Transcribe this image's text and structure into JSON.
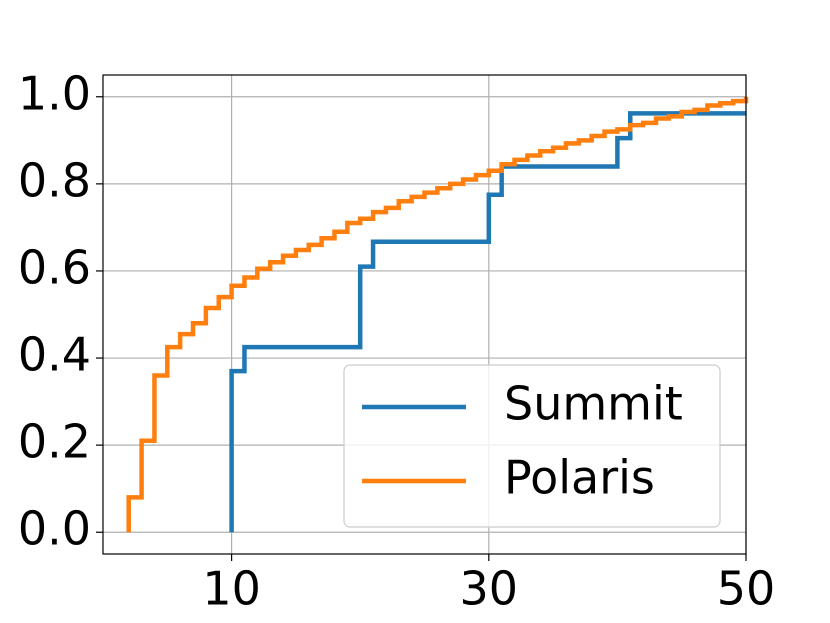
{
  "chart_data": {
    "type": "step",
    "series": [
      {
        "name": "Summit",
        "color": "#1f77b4",
        "x": [
          10,
          10,
          11,
          20,
          21,
          30,
          31,
          40,
          41,
          50
        ],
        "values": [
          0,
          0.37,
          0.425,
          0.61,
          0.667,
          0.775,
          0.84,
          0.905,
          0.962,
          0.962
        ]
      },
      {
        "name": "Polaris",
        "color": "#ff7f0e",
        "x": [
          2,
          2,
          3,
          4,
          5,
          6,
          7,
          8,
          9,
          10,
          11,
          12,
          13,
          14,
          15,
          16,
          17,
          18,
          19,
          20,
          21,
          22,
          23,
          24,
          25,
          26,
          27,
          28,
          29,
          30,
          31,
          32,
          33,
          34,
          35,
          36,
          37,
          38,
          39,
          40,
          41,
          42,
          43,
          44,
          45,
          46,
          47,
          48,
          49,
          50
        ],
        "values": [
          0,
          0.08,
          0.21,
          0.36,
          0.425,
          0.455,
          0.48,
          0.515,
          0.54,
          0.566,
          0.585,
          0.605,
          0.62,
          0.635,
          0.648,
          0.66,
          0.675,
          0.69,
          0.71,
          0.72,
          0.735,
          0.745,
          0.76,
          0.77,
          0.78,
          0.79,
          0.8,
          0.81,
          0.82,
          0.83,
          0.845,
          0.855,
          0.865,
          0.875,
          0.883,
          0.893,
          0.9,
          0.91,
          0.92,
          0.925,
          0.935,
          0.94,
          0.95,
          0.955,
          0.965,
          0.97,
          0.98,
          0.985,
          0.99,
          1.0
        ]
      }
    ],
    "xlim": [
      0,
      50
    ],
    "ylim": [
      -0.05,
      1.05
    ],
    "xticks": [
      10,
      30,
      50
    ],
    "yticks": [
      {
        "value": 0,
        "label": "0.0"
      },
      0.2,
      0.4,
      0.6,
      0.8,
      {
        "value": 1,
        "label": "1.0"
      }
    ],
    "grid": true,
    "legend": "lower right"
  }
}
